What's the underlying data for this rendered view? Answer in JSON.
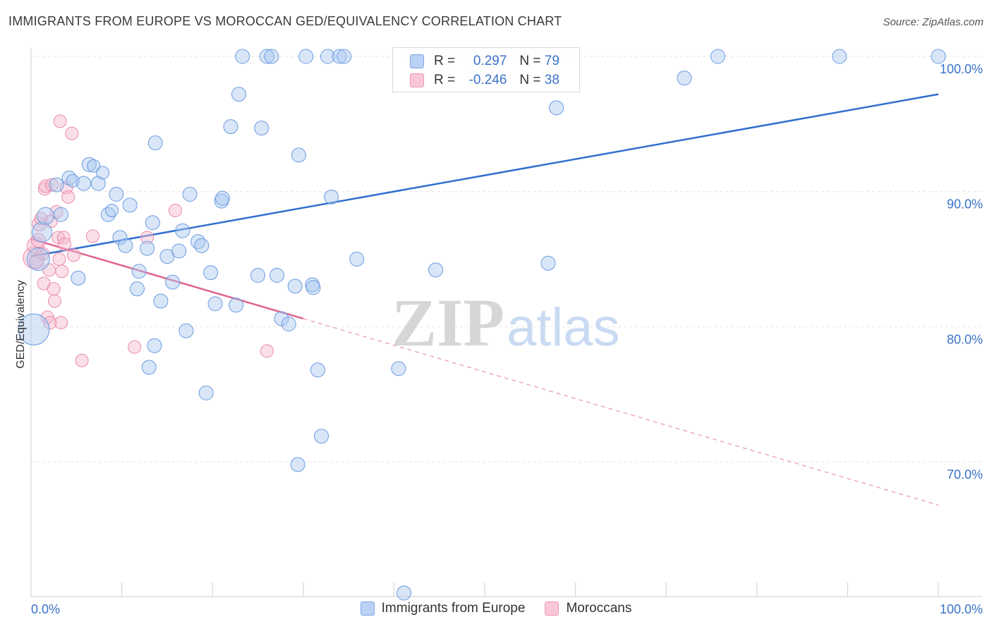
{
  "header": {
    "title": "IMMIGRANTS FROM EUROPE VS MOROCCAN GED/EQUIVALENCY CORRELATION CHART",
    "source": "Source: ZipAtlas.com"
  },
  "watermark": {
    "zip": "ZIP",
    "atlas": "atlas"
  },
  "legend": {
    "rows": [
      {
        "r_label": "R =",
        "r_value": "0.297",
        "n_label": "N =",
        "n_value": "79"
      },
      {
        "r_label": "R =",
        "r_value": "-0.246",
        "n_label": "N =",
        "n_value": "38"
      }
    ]
  },
  "bottom_legend": {
    "series1": "Immigrants from Europe",
    "series2": "Moroccans"
  },
  "colors": {
    "blue_fill": "#a9c7f0",
    "blue_stroke": "#6b9be0",
    "blue_line": "#2f6fcf",
    "pink_fill": "#f7b9cc",
    "pink_stroke": "#ea8aaa",
    "pink_line": "#e0638f",
    "tick_text": "#3a72c9",
    "grid": "#e6e6e6"
  },
  "chart_data": {
    "type": "scatter",
    "title": "IMMIGRANTS FROM EUROPE VS MOROCCAN GED/EQUIVALENCY CORRELATION CHART",
    "xlabel": "",
    "ylabel": "GED/Equivalency",
    "xlim": [
      0,
      100
    ],
    "ylim": [
      60,
      102
    ],
    "x_tick_labels": [
      "0.0%",
      "100.0%"
    ],
    "y_ticks": [
      70,
      80,
      90,
      100
    ],
    "y_tick_labels": [
      "70.0%",
      "80.0%",
      "90.0%",
      "100.0%"
    ],
    "grid": true,
    "series": [
      {
        "name": "Immigrants from Europe",
        "color": "#a9c7f0",
        "trend": {
          "x0": 0,
          "y0": 85.2,
          "x1": 100,
          "y1": 97.2
        },
        "points": [
          [
            0.3,
            79.8,
            2.2
          ],
          [
            0.8,
            85.0,
            1.6
          ],
          [
            1.2,
            87.0,
            1.4
          ],
          [
            1.6,
            88.2,
            1.2
          ],
          [
            2.8,
            90.5,
            1.0
          ],
          [
            3.3,
            88.3,
            1.0
          ],
          [
            4.2,
            91.0,
            1.0
          ],
          [
            4.6,
            90.8,
            0.9
          ],
          [
            5.2,
            83.6,
            1.0
          ],
          [
            5.8,
            90.6,
            1.0
          ],
          [
            6.4,
            92.0,
            1.0
          ],
          [
            6.9,
            91.9,
            0.9
          ],
          [
            7.4,
            90.6,
            1.0
          ],
          [
            7.9,
            91.4,
            0.9
          ],
          [
            8.5,
            88.3,
            1.0
          ],
          [
            8.9,
            88.6,
            0.9
          ],
          [
            9.4,
            89.8,
            1.0
          ],
          [
            9.8,
            86.6,
            1.0
          ],
          [
            10.4,
            86.0,
            1.0
          ],
          [
            10.9,
            89.0,
            1.0
          ],
          [
            11.7,
            82.8,
            1.0
          ],
          [
            11.9,
            84.1,
            1.0
          ],
          [
            12.8,
            85.8,
            1.0
          ],
          [
            13.0,
            77.0,
            1.0
          ],
          [
            13.4,
            87.7,
            1.0
          ],
          [
            13.6,
            78.6,
            1.0
          ],
          [
            13.7,
            93.6,
            1.0
          ],
          [
            14.3,
            81.9,
            1.0
          ],
          [
            15.0,
            85.2,
            1.0
          ],
          [
            15.6,
            83.3,
            1.0
          ],
          [
            16.3,
            85.6,
            1.0
          ],
          [
            16.7,
            87.1,
            1.0
          ],
          [
            17.1,
            79.7,
            1.0
          ],
          [
            17.5,
            89.8,
            1.0
          ],
          [
            18.4,
            86.3,
            1.0
          ],
          [
            18.8,
            86.0,
            1.0
          ],
          [
            19.3,
            75.1,
            1.0
          ],
          [
            19.8,
            84.0,
            1.0
          ],
          [
            20.3,
            81.7,
            1.0
          ],
          [
            21.0,
            89.3,
            1.0
          ],
          [
            21.1,
            89.5,
            1.0
          ],
          [
            22.0,
            94.8,
            1.0
          ],
          [
            22.6,
            81.6,
            1.0
          ],
          [
            22.9,
            97.2,
            1.0
          ],
          [
            23.3,
            100.0,
            1.0
          ],
          [
            25.0,
            83.8,
            1.0
          ],
          [
            25.4,
            94.7,
            1.0
          ],
          [
            26.0,
            100.0,
            1.0
          ],
          [
            26.5,
            100.0,
            1.0
          ],
          [
            27.1,
            83.8,
            1.0
          ],
          [
            27.6,
            80.6,
            1.0
          ],
          [
            28.4,
            80.2,
            1.0
          ],
          [
            29.1,
            83.0,
            1.0
          ],
          [
            29.4,
            69.8,
            1.0
          ],
          [
            29.5,
            92.7,
            1.0
          ],
          [
            30.3,
            100.0,
            1.0
          ],
          [
            31.0,
            83.1,
            1.0
          ],
          [
            31.1,
            82.9,
            1.0
          ],
          [
            31.6,
            76.8,
            1.0
          ],
          [
            32.0,
            71.9,
            1.0
          ],
          [
            32.7,
            100.0,
            1.0
          ],
          [
            33.1,
            89.6,
            1.0
          ],
          [
            34.0,
            100.0,
            1.0
          ],
          [
            34.5,
            100.0,
            1.0
          ],
          [
            35.9,
            85.0,
            1.0
          ],
          [
            40.5,
            76.9,
            1.0
          ],
          [
            41.1,
            60.3,
            1.0
          ],
          [
            44.6,
            84.2,
            1.0
          ],
          [
            46.0,
            100.0,
            1.0
          ],
          [
            48.4,
            100.0,
            1.0
          ],
          [
            57.0,
            84.7,
            1.0
          ],
          [
            57.9,
            96.2,
            1.0
          ],
          [
            72.0,
            98.4,
            1.0
          ],
          [
            75.7,
            100.0,
            1.0
          ],
          [
            89.1,
            100.0,
            1.0
          ],
          [
            100.0,
            100.0,
            1.0
          ]
        ]
      },
      {
        "name": "Moroccans",
        "color": "#f7b9cc",
        "trend": {
          "x0": 0,
          "y0": 86.5,
          "x1": 30.0,
          "y1": 80.6,
          "dash_to": {
            "x": 100,
            "y": 66.8
          }
        },
        "points": [
          [
            0.3,
            85.1,
            1.5
          ],
          [
            0.5,
            86.0,
            1.2
          ],
          [
            0.6,
            84.8,
            1.0
          ],
          [
            0.8,
            86.4,
            1.0
          ],
          [
            0.9,
            87.6,
            1.0
          ],
          [
            1.1,
            88.0,
            0.9
          ],
          [
            1.3,
            85.4,
            0.9
          ],
          [
            1.4,
            83.2,
            0.9
          ],
          [
            1.5,
            90.2,
            0.9
          ],
          [
            1.6,
            90.4,
            0.9
          ],
          [
            1.8,
            80.7,
            0.9
          ],
          [
            2.0,
            84.2,
            0.9
          ],
          [
            2.1,
            80.3,
            0.9
          ],
          [
            2.2,
            87.8,
            0.9
          ],
          [
            2.3,
            90.5,
            0.9
          ],
          [
            2.5,
            82.8,
            0.9
          ],
          [
            2.6,
            81.9,
            0.9
          ],
          [
            2.8,
            88.5,
            0.9
          ],
          [
            3.0,
            86.6,
            0.9
          ],
          [
            3.1,
            85.0,
            0.9
          ],
          [
            3.2,
            95.2,
            0.9
          ],
          [
            3.3,
            80.3,
            0.9
          ],
          [
            3.4,
            84.1,
            0.9
          ],
          [
            3.6,
            86.6,
            0.9
          ],
          [
            3.7,
            86.1,
            0.9
          ],
          [
            3.9,
            90.3,
            0.9
          ],
          [
            4.1,
            89.6,
            0.9
          ],
          [
            4.5,
            94.3,
            0.9
          ],
          [
            4.7,
            85.3,
            0.9
          ],
          [
            5.6,
            77.5,
            0.9
          ],
          [
            6.8,
            86.7,
            0.9
          ],
          [
            11.4,
            78.5,
            0.9
          ],
          [
            12.8,
            86.6,
            0.9
          ],
          [
            15.9,
            88.6,
            0.9
          ],
          [
            26.0,
            78.2,
            0.9
          ]
        ]
      }
    ]
  }
}
